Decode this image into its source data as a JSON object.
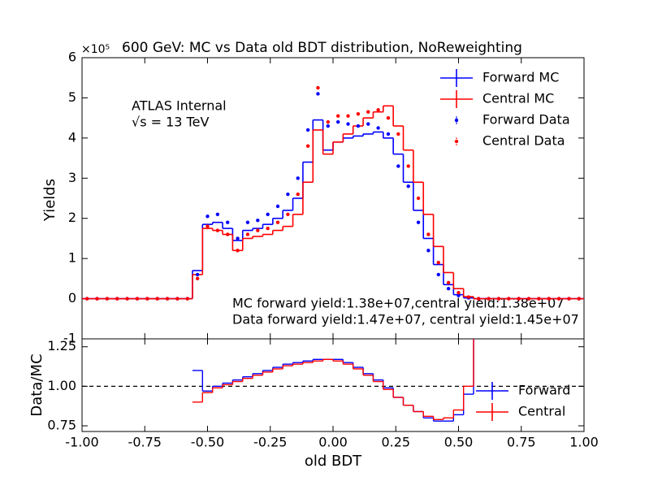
{
  "chart_data": [
    {
      "type": "histogram",
      "title": "600 GeV: MC vs Data old BDT distribution, NoReweighting",
      "offset_label": "×10⁵",
      "ylabel": "Yields",
      "annotations": [
        "ATLAS Internal",
        "√s = 13 TeV",
        "MC forward yield:1.38e+07,central yield:1.38e+07",
        "Data forward yield:1.47e+07, central yield:1.45e+07"
      ],
      "legend": "upper right",
      "xlim": [
        -1,
        1
      ],
      "ylim": [
        -1,
        6
      ],
      "yticks": [
        -1,
        0,
        1,
        2,
        3,
        4,
        5,
        6
      ],
      "bins": [
        -1,
        -0.96,
        -0.92,
        -0.88,
        -0.84,
        -0.8,
        -0.76,
        -0.72,
        -0.68,
        -0.64,
        -0.6,
        -0.56,
        -0.52,
        -0.48,
        -0.44,
        -0.4,
        -0.36,
        -0.32,
        -0.28,
        -0.24,
        -0.2,
        -0.16,
        -0.12,
        -0.08,
        -0.04,
        0,
        0.04,
        0.08,
        0.12,
        0.16,
        0.2,
        0.24,
        0.28,
        0.32,
        0.36,
        0.4,
        0.44,
        0.48,
        0.52,
        0.56,
        0.6,
        0.64,
        0.68,
        0.72,
        0.76,
        0.8,
        0.84,
        0.88,
        0.92,
        0.96,
        1
      ],
      "series": [
        {
          "name": "Forward MC",
          "style": "step",
          "color": "#0000ff",
          "values": [
            0,
            0,
            0,
            0,
            0,
            0,
            0,
            0,
            0,
            0,
            0,
            0.7,
            1.85,
            1.9,
            1.75,
            1.45,
            1.7,
            1.75,
            1.85,
            2.0,
            2.2,
            2.5,
            3.4,
            4.45,
            3.7,
            3.9,
            4.0,
            4.05,
            4.1,
            4.15,
            4.0,
            3.6,
            2.9,
            2.2,
            1.5,
            0.85,
            0.35,
            0.1,
            0.02,
            0,
            0,
            0,
            0,
            0,
            0,
            0,
            0,
            0,
            0,
            0
          ]
        },
        {
          "name": "Central MC",
          "style": "step",
          "color": "#ff0000",
          "values": [
            0,
            0,
            0,
            0,
            0,
            0,
            0,
            0,
            0,
            0,
            0,
            0.6,
            1.75,
            1.7,
            1.6,
            1.2,
            1.5,
            1.55,
            1.6,
            1.7,
            1.8,
            2.1,
            2.9,
            4.2,
            3.6,
            3.9,
            4.1,
            4.3,
            4.5,
            4.65,
            4.8,
            4.3,
            3.7,
            2.9,
            2.1,
            1.3,
            0.65,
            0.25,
            0.05,
            0,
            0,
            0,
            0,
            0,
            0,
            0,
            0,
            0,
            0,
            0
          ]
        },
        {
          "name": "Forward Data",
          "style": "points",
          "color": "#0000ff",
          "values": [
            0,
            0,
            0,
            0,
            0,
            0,
            0,
            0,
            0,
            0,
            0,
            0.6,
            2.05,
            2.1,
            1.9,
            1.5,
            1.9,
            1.95,
            2.1,
            2.3,
            2.6,
            3.0,
            4.2,
            5.1,
            4.3,
            4.4,
            4.35,
            4.3,
            4.35,
            4.25,
            4.1,
            3.3,
            2.8,
            1.9,
            1.2,
            0.6,
            0.25,
            0.08,
            0.02,
            0,
            0,
            0,
            0,
            0,
            0,
            0,
            0,
            0,
            0,
            0
          ]
        },
        {
          "name": "Central Data",
          "style": "points",
          "color": "#ff0000",
          "values": [
            0,
            0,
            0,
            0,
            0,
            0,
            0,
            0,
            0,
            0,
            0,
            0.5,
            1.8,
            1.7,
            1.6,
            1.2,
            1.6,
            1.7,
            1.75,
            1.9,
            2.1,
            2.6,
            3.8,
            5.25,
            4.4,
            4.55,
            4.55,
            4.6,
            4.65,
            4.7,
            4.5,
            4.1,
            3.3,
            2.5,
            1.6,
            0.9,
            0.4,
            0.15,
            0.04,
            0,
            0,
            0,
            0,
            0,
            0,
            0,
            0,
            0,
            0,
            0
          ]
        }
      ]
    },
    {
      "type": "ratio",
      "xlabel": "old BDT",
      "ylabel": "Data/MC",
      "legend": "lower right",
      "xlim": [
        -1,
        1
      ],
      "ylim": [
        0.714,
        1.3
      ],
      "xticks": [
        {
          "value": -1,
          "label": "-1.00"
        },
        {
          "value": -0.75,
          "label": "-0.75"
        },
        {
          "value": -0.5,
          "label": "-0.50"
        },
        {
          "value": -0.25,
          "label": "-0.25"
        },
        {
          "value": 0,
          "label": "0.00"
        },
        {
          "value": 0.25,
          "label": "0.25"
        },
        {
          "value": 0.5,
          "label": "0.50"
        },
        {
          "value": 0.75,
          "label": "0.75"
        },
        {
          "value": 1,
          "label": "1.00"
        }
      ],
      "yticks": [
        {
          "value": 0.75,
          "label": "0.75"
        },
        {
          "value": 1,
          "label": "1.00"
        },
        {
          "value": 1.25,
          "label": "1.25"
        }
      ],
      "reference_line": 1,
      "series": [
        {
          "name": "Forward",
          "color": "#0000ff",
          "values": [
            null,
            null,
            null,
            null,
            null,
            null,
            null,
            null,
            null,
            null,
            null,
            1.1,
            0.97,
            1.0,
            1.02,
            1.04,
            1.06,
            1.08,
            1.1,
            1.12,
            1.14,
            1.15,
            1.16,
            1.17,
            1.17,
            1.17,
            1.15,
            1.12,
            1.08,
            1.04,
            0.99,
            0.93,
            0.88,
            0.84,
            0.8,
            0.78,
            0.78,
            0.82,
            0.95,
            1.4,
            null,
            null,
            null,
            null,
            null,
            null,
            null,
            null,
            null,
            null
          ]
        },
        {
          "name": "Central",
          "color": "#ff0000",
          "values": [
            null,
            null,
            null,
            null,
            null,
            null,
            null,
            null,
            null,
            null,
            null,
            0.9,
            0.96,
            0.99,
            1.01,
            1.03,
            1.05,
            1.07,
            1.09,
            1.11,
            1.13,
            1.14,
            1.15,
            1.16,
            1.17,
            1.16,
            1.14,
            1.11,
            1.07,
            1.03,
            0.98,
            0.93,
            0.88,
            0.84,
            0.81,
            0.79,
            0.8,
            0.85,
            1.0,
            1.5,
            null,
            null,
            null,
            null,
            null,
            null,
            null,
            null,
            null,
            null
          ]
        }
      ]
    }
  ]
}
